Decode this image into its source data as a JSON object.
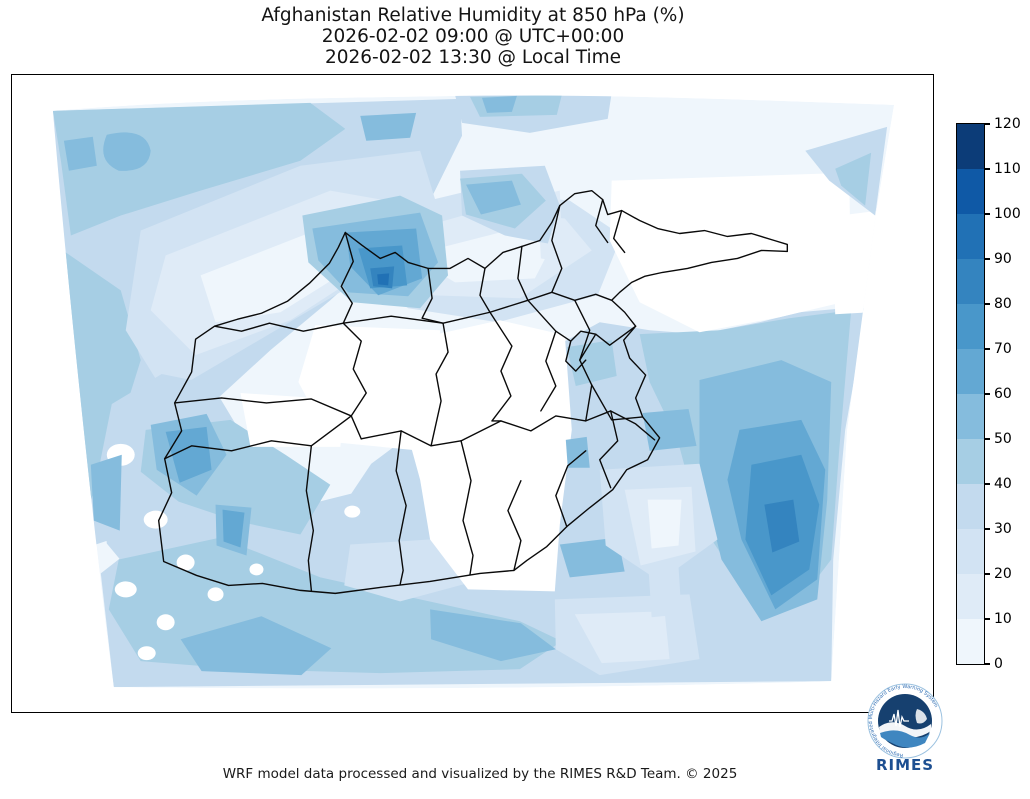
{
  "title": {
    "line1": "Afghanistan Relative Humidity at 850 hPa (%)",
    "line2": "2026-02-02 09:00 @ UTC+00:00",
    "line3": "2026-02-02 13:30 @ Local Time"
  },
  "footer": "WRF model data processed and visualized by the RIMES R&D Team. © 2025",
  "logo": {
    "label": "RIMES",
    "ring_text": "Regional Integrated Multi-Hazard Early Warning System",
    "text_color": "#1d4f91",
    "disc_color": "#16406f",
    "wave_color": "#3f86c0"
  },
  "map": {
    "background": "#ffffff",
    "frame_color": "#000000",
    "boundary_color": "#0a0a0a",
    "palette": {
      "W": "#ffffff",
      "L1": "#eff6fc",
      "L2": "#dfebf7",
      "L3": "#d2e3f3",
      "L4": "#c3daee",
      "L5": "#a6cee4",
      "L6": "#85bcdd",
      "L7": "#63a8d3",
      "L8": "#4997ca",
      "L9": "#3484bf",
      "L10": "#2171b5",
      "L11": "#0f59a6",
      "L12": "#0c3c78"
    }
  },
  "colorbar": {
    "min": 0,
    "max": 120,
    "ticks": [
      0,
      10,
      20,
      30,
      40,
      50,
      60,
      70,
      80,
      90,
      100,
      110,
      120
    ],
    "colors_bottom_to_top": [
      "#eff6fc",
      "#dfebf7",
      "#d2e3f3",
      "#c3daee",
      "#a6cee4",
      "#85bcdd",
      "#63a8d3",
      "#4997ca",
      "#3484bf",
      "#2171b5",
      "#0f59a6",
      "#0c3c78"
    ],
    "outline": "#000000"
  },
  "chart_data": {
    "type": "contour-map",
    "title": "Afghanistan Relative Humidity at 850 hPa (%)",
    "valid_time_utc": "2026-02-02 09:00 @ UTC+00:00",
    "valid_time_local": "2026-02-02 13:30 @ Local Time",
    "variable": "Relative Humidity",
    "pressure_level_hPa": 850,
    "units": "%",
    "contour_levels": [
      0,
      10,
      20,
      30,
      40,
      50,
      60,
      70,
      80,
      90,
      100,
      110,
      120
    ],
    "colormap": "Blues (12 discrete bins)",
    "legend_position": "right",
    "notable_features": [
      "Dark humid spot (~80-100%) over northwest Afghanistan near Badghis",
      "Broad 30-50% band across the far northwest of the domain",
      "Large 40-70% moist region over southeastern Afghanistan and Pakistan border area, with core ~80-90%",
      "Mostly dry (<10%) central and northeastern Afghanistan",
      "Moist band 40-60% along southwestern Afghanistan and Iran border",
      "Small 30-50% patch in the far northeast corner of the domain"
    ]
  }
}
